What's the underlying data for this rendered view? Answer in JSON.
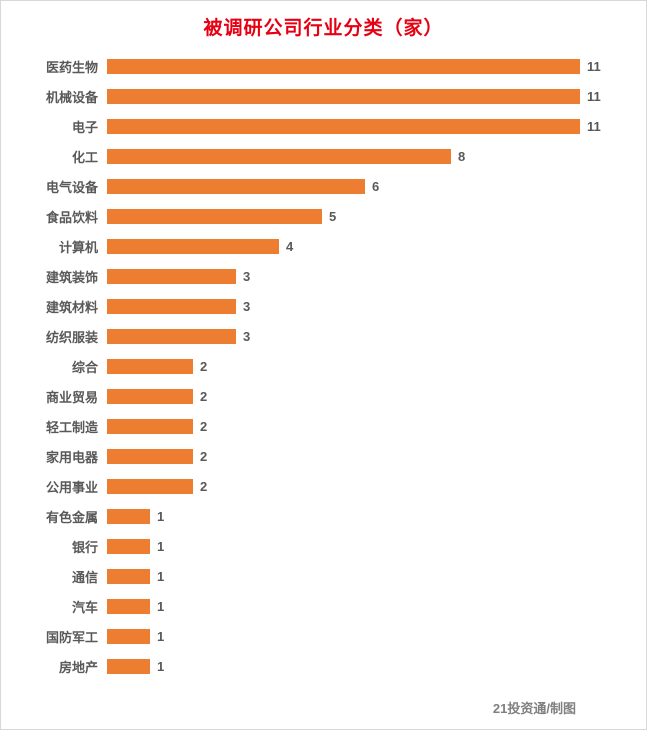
{
  "chart_data": {
    "type": "bar",
    "orientation": "horizontal",
    "title": "被调研公司行业分类（家）",
    "categories": [
      "医药生物",
      "机械设备",
      "电子",
      "化工",
      "电气设备",
      "食品饮料",
      "计算机",
      "建筑装饰",
      "建筑材料",
      "纺织服装",
      "综合",
      "商业贸易",
      "轻工制造",
      "家用电器",
      "公用事业",
      "有色金属",
      "银行",
      "通信",
      "汽车",
      "国防军工",
      "房地产"
    ],
    "values": [
      11,
      11,
      11,
      8,
      6,
      5,
      4,
      3,
      3,
      3,
      2,
      2,
      2,
      2,
      2,
      1,
      1,
      1,
      1,
      1,
      1
    ],
    "xlim": [
      0,
      11
    ],
    "data_labels": true,
    "grid": false,
    "legend": "none",
    "bar_color": "#ED7D31",
    "title_color": "#E60012",
    "label_color": "#595959",
    "credit": "21投资通/制图"
  }
}
